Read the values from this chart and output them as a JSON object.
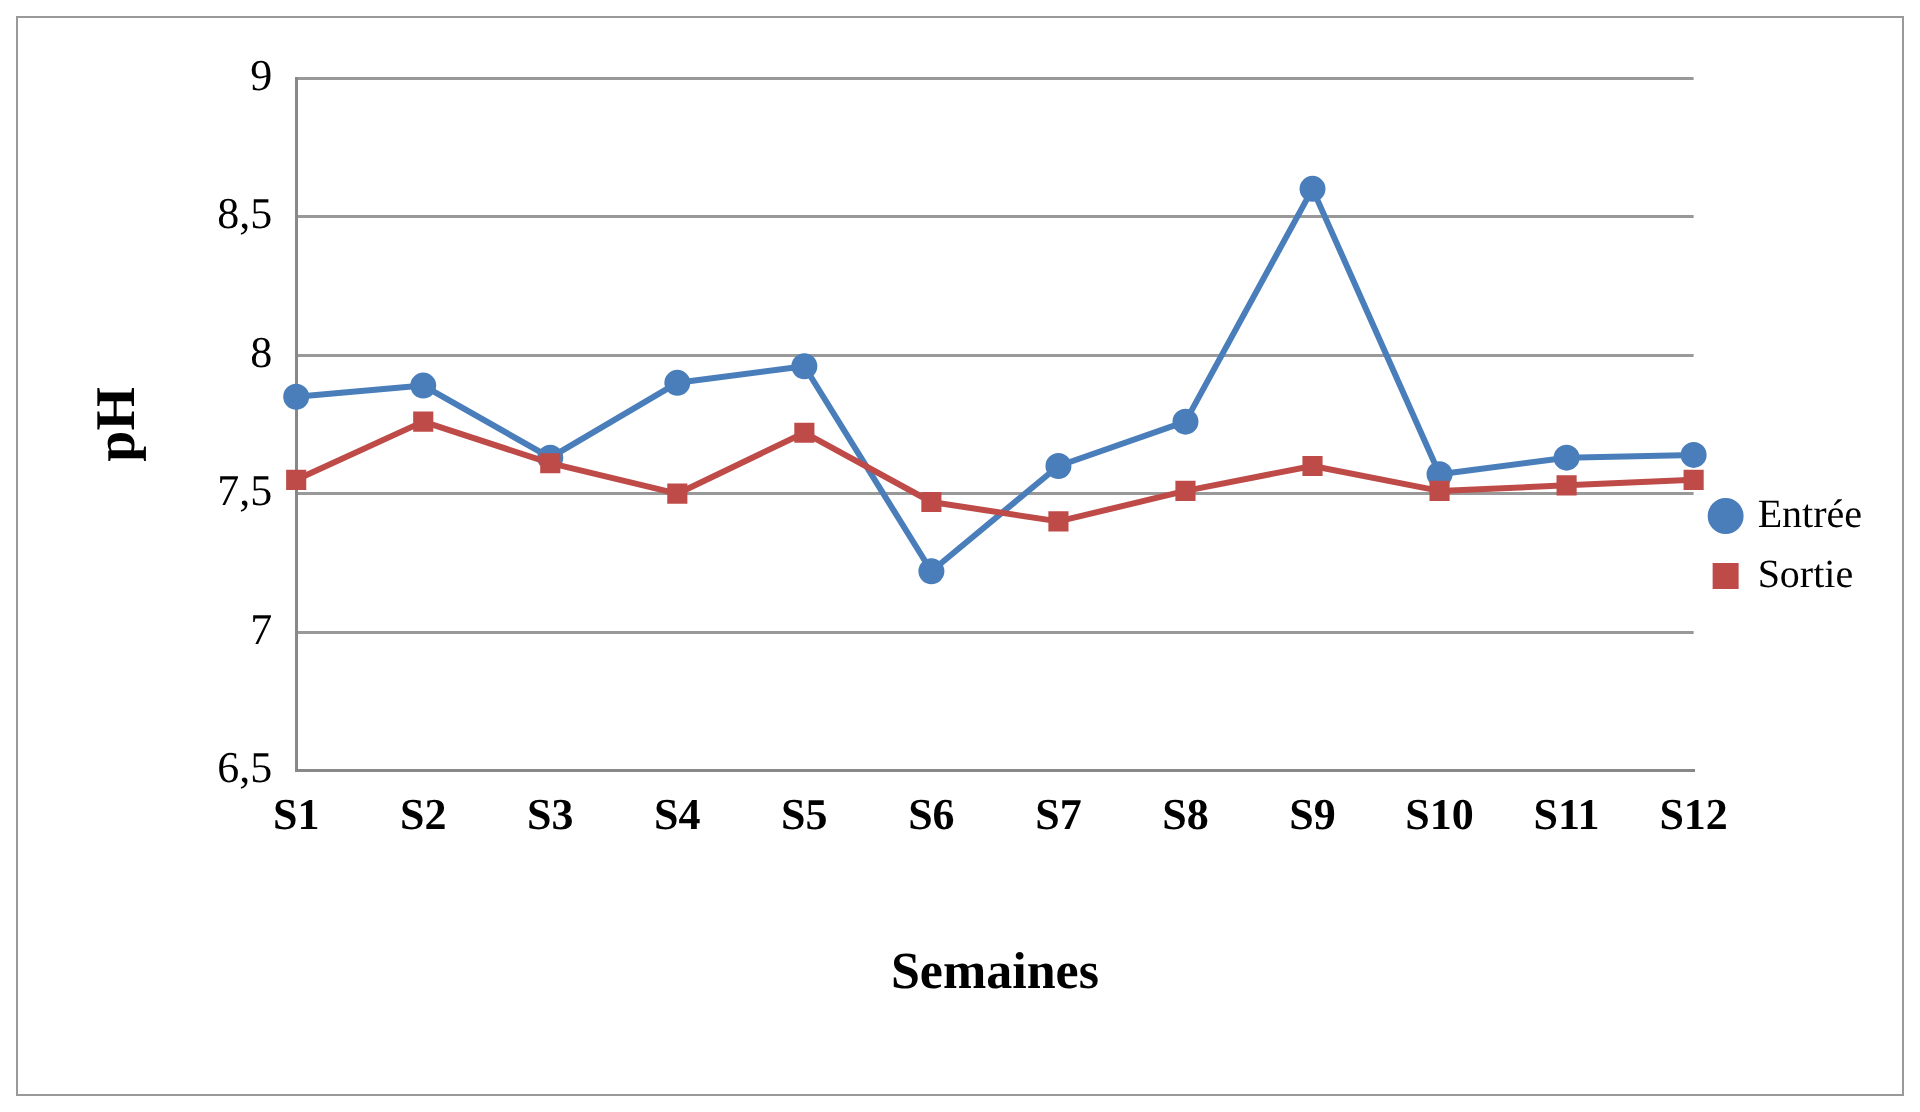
{
  "chart_data": {
    "type": "line",
    "xlabel": "Semaines",
    "ylabel": "pH",
    "categories": [
      "S1",
      "S2",
      "S3",
      "S4",
      "S5",
      "S6",
      "S7",
      "S8",
      "S9",
      "S10",
      "S11",
      "S12"
    ],
    "series": [
      {
        "name": "Entrée",
        "color": "#4a7ebb",
        "marker": "circle",
        "values": [
          7.85,
          7.89,
          7.63,
          7.9,
          7.96,
          7.22,
          7.6,
          7.76,
          8.6,
          7.57,
          7.63,
          7.64
        ]
      },
      {
        "name": "Sortie",
        "color": "#be4b48",
        "marker": "square",
        "values": [
          7.55,
          7.76,
          7.61,
          7.5,
          7.72,
          7.47,
          7.4,
          7.51,
          7.6,
          7.51,
          7.53,
          7.55
        ]
      }
    ],
    "ylim": [
      6.5,
      9
    ],
    "yticks": [
      {
        "value": 6.5,
        "label": "6,5"
      },
      7,
      {
        "value": 7.5,
        "label": "7,5"
      },
      8,
      {
        "value": 8.5,
        "label": "8,5"
      },
      9
    ],
    "grid": "y",
    "legend": "right",
    "line_style": "solid"
  }
}
